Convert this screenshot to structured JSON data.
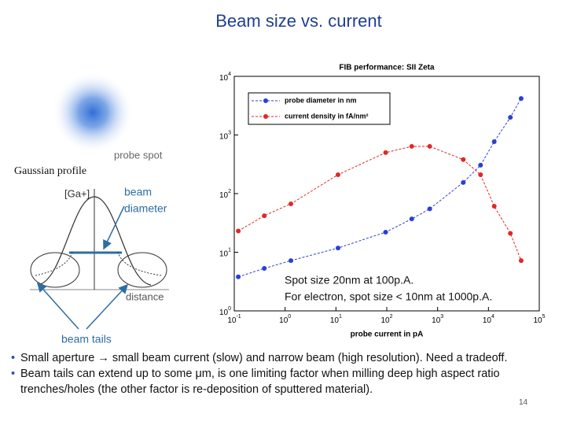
{
  "title": "Beam size vs. current",
  "diagram": {
    "probe_spot": "probe spot",
    "gaussian_profile": "Gaussian profile",
    "y_label": "[Ga+]",
    "beam_diameter": [
      "beam",
      "diameter"
    ],
    "x_label": "distance",
    "beam_tails": "beam tails"
  },
  "bullets": [
    "Small aperture → small beam current (slow) and narrow beam (high resolution). Need a tradeoff.",
    "Beam tails can extend up to some μm, is one limiting factor when milling deep high aspect ratio trenches/holes (the other factor is re-deposition of sputtered material)."
  ],
  "page_number": "14",
  "chart_data": {
    "type": "line",
    "title": "FIB performance: SII Zeta",
    "x_label": "probe current in pA",
    "xscale": "log",
    "yscale": "log",
    "xlim": [
      0.1,
      100000
    ],
    "xticks": [
      {
        "value": 0.1,
        "label": "10",
        "exp": "-1"
      },
      {
        "value": 1,
        "label": "10",
        "exp": "0"
      },
      {
        "value": 10,
        "label": "10",
        "exp": "1"
      },
      {
        "value": 100,
        "label": "10",
        "exp": "2"
      },
      {
        "value": 1000,
        "label": "10",
        "exp": "3"
      },
      {
        "value": 10000,
        "label": "10",
        "exp": "4"
      },
      {
        "value": 100000,
        "label": "10",
        "exp": "5"
      }
    ],
    "ylim": [
      1,
      10000
    ],
    "yticks": [
      {
        "value": 1,
        "label": "10",
        "exp": "0"
      },
      {
        "value": 10,
        "label": "10",
        "exp": "1"
      },
      {
        "value": 100,
        "label": "10",
        "exp": "2"
      },
      {
        "value": 1000,
        "label": "10",
        "exp": "3"
      },
      {
        "value": 10000,
        "label": "10",
        "exp": "4"
      }
    ],
    "x": [
      0.12,
      0.39,
      1.3,
      11,
      95,
      310,
      700,
      3200,
      7000,
      13000,
      27000,
      44000
    ],
    "series": [
      {
        "name": "probe diameter in nm",
        "color": "#2b3fd6",
        "values": [
          3.8,
          5.3,
          7.2,
          11.8,
          22,
          37,
          55,
          155,
          305,
          770,
          2000,
          4200
        ]
      },
      {
        "name": "current density in fA/nm²",
        "color": "#e02828",
        "values": [
          23,
          42,
          67,
          210,
          500,
          640,
          640,
          380,
          210,
          61,
          21,
          7.2
        ]
      }
    ],
    "legend": "upper left",
    "annotations": [
      "Spot size 20nm at 100p.A.",
      "For electron, spot size < 10nm at 1000p.A."
    ]
  }
}
